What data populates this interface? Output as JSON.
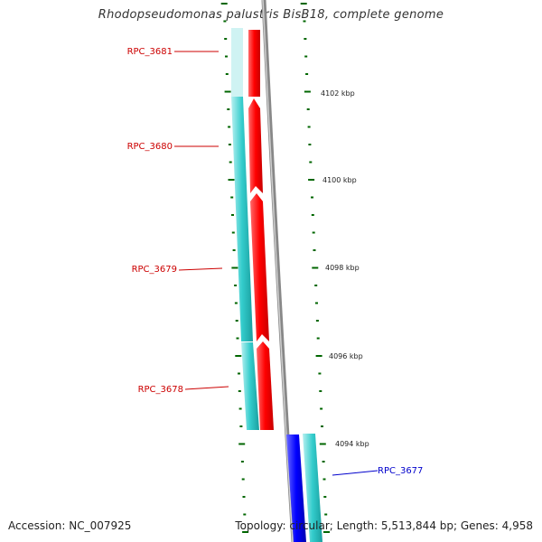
{
  "header": {
    "title": "Rhodopseudomonas palustris BisB18, complete genome"
  },
  "footer": {
    "accession": "Accession: NC_007925",
    "summary": "Topology: circular; Length: 5,513,844 bp; Genes: 4,958"
  },
  "ruler": {
    "labels": [
      "4102 kbp",
      "4100 kbp",
      "4098 kbp",
      "4096 kbp",
      "4094 kbp"
    ]
  },
  "genes": [
    {
      "name": "RPC_3681",
      "strand": "reverse",
      "label_color": "#cc0000"
    },
    {
      "name": "RPC_3680",
      "strand": "reverse",
      "label_color": "#cc0000"
    },
    {
      "name": "RPC_3679",
      "strand": "reverse",
      "label_color": "#cc0000"
    },
    {
      "name": "RPC_3678",
      "strand": "reverse",
      "label_color": "#cc0000"
    },
    {
      "name": "RPC_3677",
      "strand": "forward",
      "label_color": "#0000cc"
    }
  ],
  "colors": {
    "reverse_cds": "#ff0000",
    "forward_cds": "#0000ff",
    "gene_band": "#33cccc",
    "backbone": "#777777",
    "ticks": "#006600",
    "ruler_text": "#222222"
  }
}
